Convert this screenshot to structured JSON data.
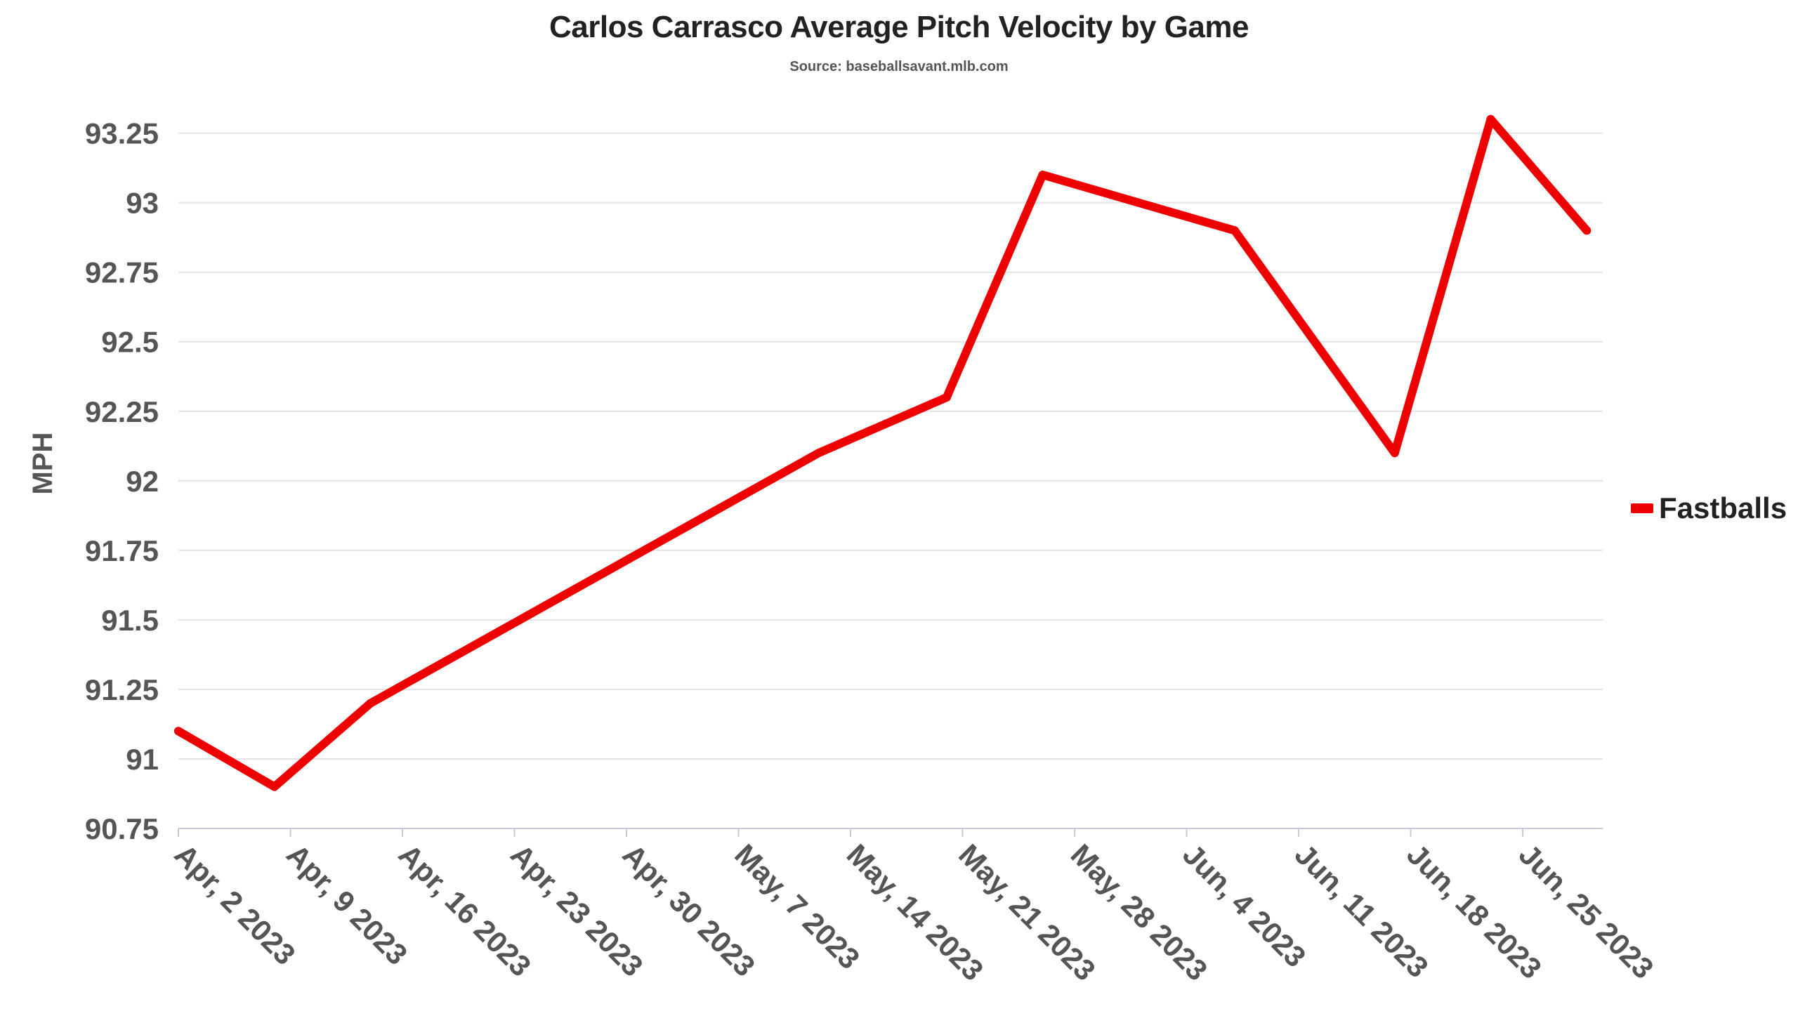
{
  "chart_data": {
    "type": "line",
    "title": "Carlos Carrasco Average Pitch Velocity by Game",
    "subtitle": "Source: baseballsavant.mlb.com",
    "xlabel": "",
    "ylabel": "MPH",
    "x_ticks": [
      "Apr, 2 2023",
      "Apr, 9 2023",
      "Apr, 16 2023",
      "Apr, 23 2023",
      "Apr, 30 2023",
      "May, 7 2023",
      "May, 14 2023",
      "May, 21 2023",
      "May, 28 2023",
      "Jun, 4 2023",
      "Jun, 11 2023",
      "Jun, 18 2023",
      "Jun, 25 2023"
    ],
    "y_ticks": [
      "90.75",
      "91",
      "91.25",
      "91.5",
      "91.75",
      "92",
      "92.25",
      "92.5",
      "92.75",
      "93",
      "93.25"
    ],
    "ylim": [
      90.75,
      93.35
    ],
    "xlim": [
      "2023-04-02",
      "2023-06-30"
    ],
    "grid": true,
    "legend_position": "right",
    "series": [
      {
        "name": "Fastballs",
        "color": "#ee0000",
        "points": [
          {
            "x": "2023-04-02",
            "y": 91.1
          },
          {
            "x": "2023-04-08",
            "y": 90.9
          },
          {
            "x": "2023-04-14",
            "y": 91.2
          },
          {
            "x": "2023-05-12",
            "y": 92.1
          },
          {
            "x": "2023-05-20",
            "y": 92.3
          },
          {
            "x": "2023-05-26",
            "y": 93.1
          },
          {
            "x": "2023-06-01",
            "y": 93.0
          },
          {
            "x": "2023-06-07",
            "y": 92.9
          },
          {
            "x": "2023-06-17",
            "y": 92.1
          },
          {
            "x": "2023-06-23",
            "y": 93.3
          },
          {
            "x": "2023-06-29",
            "y": 92.9
          }
        ]
      }
    ]
  }
}
